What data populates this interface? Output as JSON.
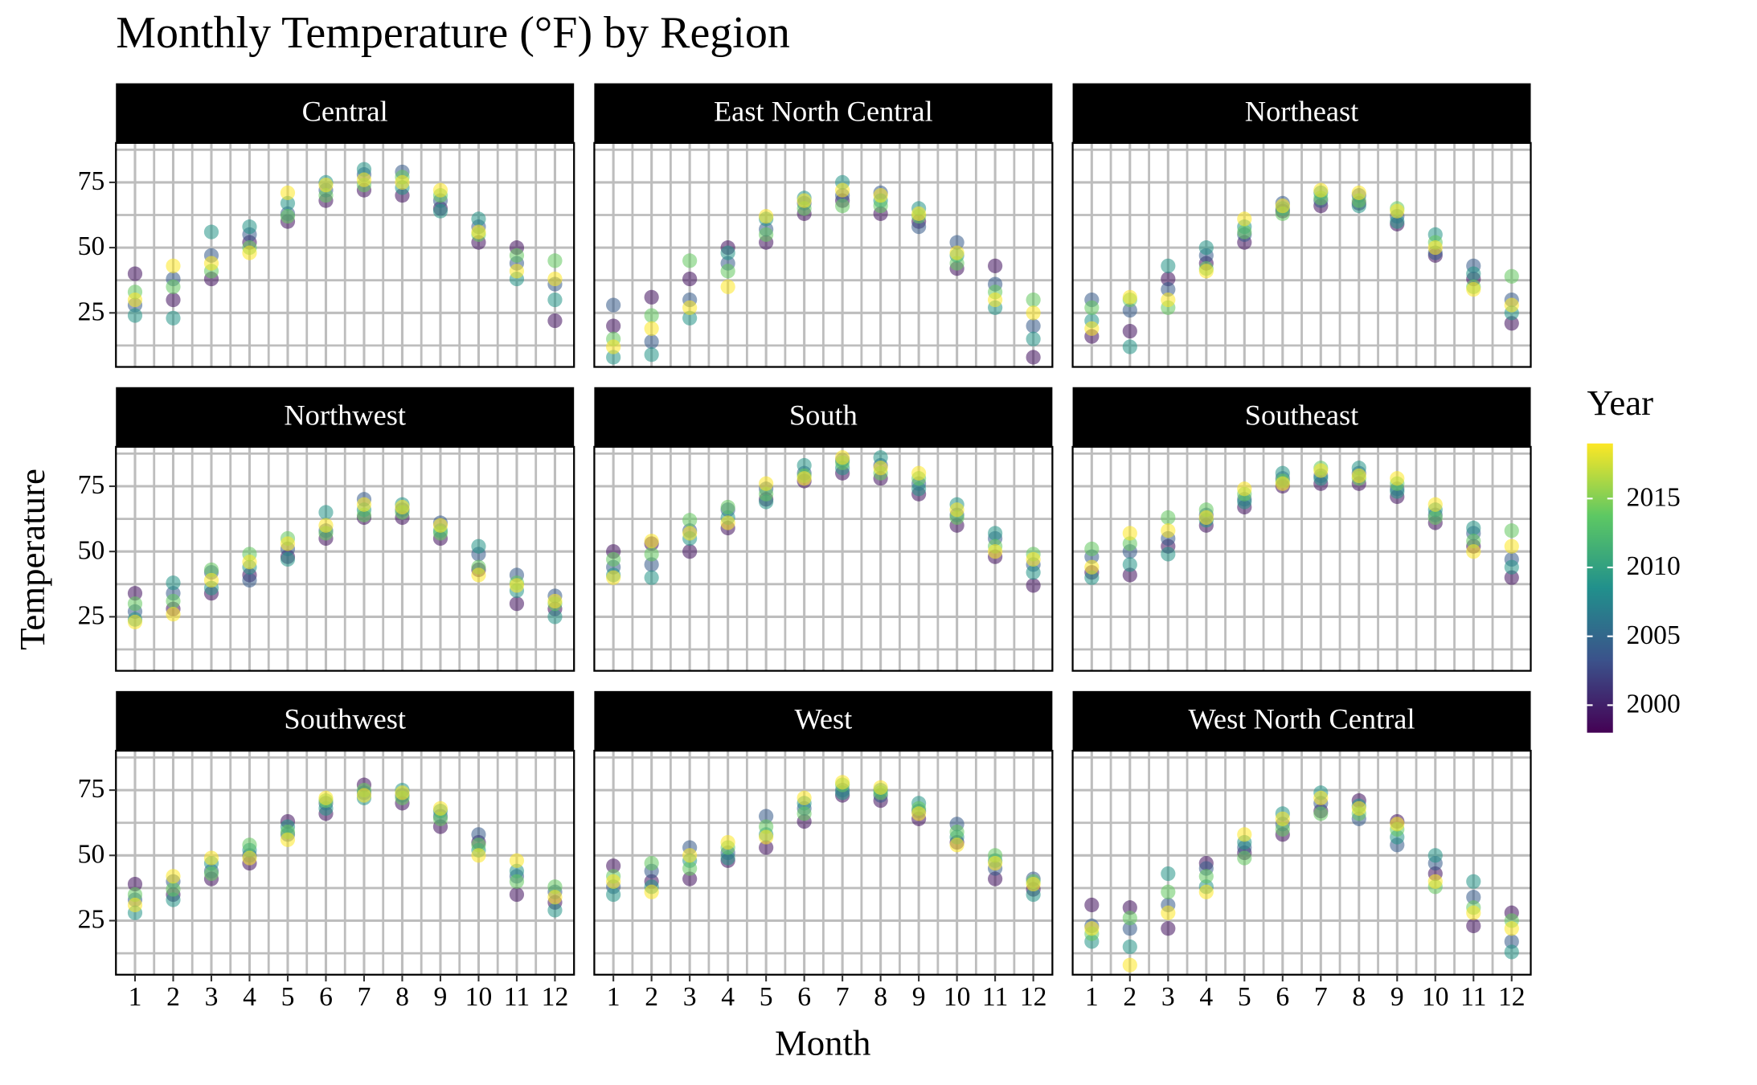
{
  "chart_data": {
    "type": "scatter",
    "title": "Monthly Temperature (°F) by Region",
    "x_label": "Month",
    "y_label": "Temperature",
    "x": [
      1,
      2,
      3,
      4,
      5,
      6,
      7,
      8,
      9,
      10,
      11,
      12
    ],
    "xlim": [
      0.5,
      12.5
    ],
    "xticks": [
      1,
      2,
      3,
      4,
      5,
      6,
      7,
      8,
      9,
      10,
      11,
      12
    ],
    "xminor": [
      1.5,
      2.5,
      3.5,
      4.5,
      5.5,
      6.5,
      7.5,
      8.5,
      9.5,
      10.5,
      11.5
    ],
    "ylim": [
      4.3,
      90.1
    ],
    "yticks": [
      25,
      50,
      75
    ],
    "yminor": [
      12.5,
      37.5,
      62.5,
      87.5
    ],
    "grid": true,
    "legend_title": "Year",
    "years": [
      1999,
      2004,
      2009,
      2014,
      2019
    ],
    "colorbar_lim": [
      1998,
      2019
    ],
    "colorbar_ticks": [
      2000,
      2005,
      2010,
      2015
    ],
    "colormap": [
      "#440154",
      "#3b528b",
      "#21908c",
      "#5dc863",
      "#fde725"
    ],
    "facets": [
      {
        "name": "Central",
        "values": [
          [
            40,
            28,
            24,
            33,
            30
          ],
          [
            30,
            38,
            23,
            35,
            43
          ],
          [
            38,
            47,
            56,
            41,
            44
          ],
          [
            52,
            55,
            58,
            50,
            48
          ],
          [
            60,
            63,
            67,
            62,
            71
          ],
          [
            68,
            72,
            75,
            70,
            74
          ],
          [
            72,
            78,
            80,
            74,
            76
          ],
          [
            70,
            79,
            73,
            77,
            75
          ],
          [
            65,
            68,
            64,
            70,
            72
          ],
          [
            52,
            58,
            61,
            55,
            56
          ],
          [
            50,
            44,
            38,
            47,
            41
          ],
          [
            22,
            36,
            30,
            45,
            38
          ]
        ]
      },
      {
        "name": "East North Central",
        "values": [
          [
            20,
            28,
            8,
            15,
            12
          ],
          [
            31,
            14,
            9,
            24,
            19
          ],
          [
            38,
            30,
            23,
            45,
            27
          ],
          [
            50,
            44,
            48,
            41,
            35
          ],
          [
            52,
            57,
            61,
            55,
            62
          ],
          [
            63,
            67,
            69,
            65,
            68
          ],
          [
            68,
            70,
            75,
            66,
            72
          ],
          [
            63,
            71,
            68,
            66,
            70
          ],
          [
            60,
            58,
            65,
            62,
            63
          ],
          [
            42,
            52,
            47,
            44,
            48
          ],
          [
            43,
            36,
            27,
            33,
            30
          ],
          [
            8,
            20,
            15,
            30,
            25
          ]
        ]
      },
      {
        "name": "Northeast",
        "values": [
          [
            16,
            30,
            22,
            27,
            19
          ],
          [
            18,
            26,
            12,
            30,
            31
          ],
          [
            38,
            34,
            43,
            27,
            30
          ],
          [
            44,
            47,
            50,
            42,
            41
          ],
          [
            52,
            55,
            58,
            56,
            61
          ],
          [
            64,
            67,
            65,
            63,
            66
          ],
          [
            66,
            68,
            71,
            69,
            72
          ],
          [
            67,
            70,
            66,
            68,
            71
          ],
          [
            59,
            62,
            60,
            65,
            64
          ],
          [
            47,
            48,
            55,
            52,
            50
          ],
          [
            38,
            43,
            40,
            35,
            34
          ],
          [
            21,
            30,
            25,
            39,
            28
          ]
        ]
      },
      {
        "name": "Northwest",
        "values": [
          [
            34,
            27,
            24,
            30,
            23
          ],
          [
            28,
            34,
            38,
            31,
            26
          ],
          [
            34,
            42,
            36,
            43,
            39
          ],
          [
            41,
            39,
            44,
            49,
            46
          ],
          [
            48,
            51,
            47,
            55,
            53
          ],
          [
            55,
            58,
            65,
            57,
            60
          ],
          [
            63,
            70,
            66,
            64,
            68
          ],
          [
            63,
            66,
            68,
            65,
            67
          ],
          [
            55,
            61,
            58,
            57,
            60
          ],
          [
            43,
            49,
            52,
            44,
            41
          ],
          [
            30,
            41,
            35,
            38,
            37
          ],
          [
            28,
            33,
            25,
            30,
            31
          ]
        ]
      },
      {
        "name": "South",
        "values": [
          [
            50,
            44,
            41,
            47,
            40
          ],
          [
            53,
            45,
            40,
            49,
            54
          ],
          [
            50,
            58,
            55,
            62,
            57
          ],
          [
            59,
            66,
            63,
            67,
            61
          ],
          [
            70,
            74,
            69,
            72,
            76
          ],
          [
            77,
            80,
            83,
            79,
            78
          ],
          [
            80,
            85,
            82,
            84,
            86
          ],
          [
            78,
            83,
            86,
            80,
            82
          ],
          [
            72,
            76,
            74,
            78,
            80
          ],
          [
            60,
            64,
            68,
            63,
            66
          ],
          [
            48,
            55,
            57,
            52,
            50
          ],
          [
            37,
            45,
            42,
            49,
            47
          ]
        ]
      },
      {
        "name": "Southeast",
        "values": [
          [
            42,
            48,
            40,
            51,
            44
          ],
          [
            41,
            50,
            45,
            53,
            57
          ],
          [
            52,
            55,
            49,
            63,
            58
          ],
          [
            60,
            64,
            62,
            66,
            63
          ],
          [
            67,
            70,
            69,
            72,
            74
          ],
          [
            75,
            78,
            80,
            77,
            76
          ],
          [
            76,
            79,
            78,
            82,
            81
          ],
          [
            76,
            80,
            82,
            78,
            79
          ],
          [
            71,
            74,
            73,
            76,
            78
          ],
          [
            61,
            64,
            66,
            63,
            68
          ],
          [
            52,
            57,
            59,
            54,
            50
          ],
          [
            40,
            47,
            44,
            58,
            52
          ]
        ]
      },
      {
        "name": "Southwest",
        "values": [
          [
            39,
            33,
            28,
            35,
            31
          ],
          [
            35,
            40,
            33,
            37,
            42
          ],
          [
            41,
            44,
            47,
            43,
            49
          ],
          [
            47,
            50,
            52,
            54,
            49
          ],
          [
            63,
            58,
            61,
            59,
            56
          ],
          [
            66,
            70,
            68,
            71,
            72
          ],
          [
            77,
            74,
            72,
            75,
            73
          ],
          [
            70,
            73,
            75,
            72,
            74
          ],
          [
            61,
            65,
            67,
            64,
            68
          ],
          [
            55,
            58,
            52,
            54,
            50
          ],
          [
            35,
            42,
            44,
            40,
            48
          ],
          [
            32,
            36,
            29,
            38,
            34
          ]
        ]
      },
      {
        "name": "West",
        "values": [
          [
            46,
            38,
            35,
            42,
            40
          ],
          [
            40,
            44,
            38,
            47,
            36
          ],
          [
            41,
            53,
            48,
            45,
            50
          ],
          [
            48,
            51,
            49,
            53,
            55
          ],
          [
            53,
            65,
            58,
            61,
            57
          ],
          [
            63,
            68,
            70,
            66,
            72
          ],
          [
            73,
            75,
            74,
            77,
            78
          ],
          [
            71,
            73,
            75,
            74,
            76
          ],
          [
            64,
            67,
            70,
            68,
            66
          ],
          [
            55,
            62,
            57,
            59,
            54
          ],
          [
            41,
            45,
            48,
            50,
            47
          ],
          [
            37,
            41,
            35,
            40,
            39
          ]
        ]
      },
      {
        "name": "West North Central",
        "values": [
          [
            31,
            23,
            17,
            20,
            22
          ],
          [
            30,
            22,
            15,
            26,
            8
          ],
          [
            22,
            31,
            43,
            36,
            28
          ],
          [
            47,
            45,
            38,
            42,
            36
          ],
          [
            51,
            53,
            55,
            49,
            58
          ],
          [
            58,
            62,
            66,
            60,
            64
          ],
          [
            67,
            70,
            74,
            66,
            72
          ],
          [
            71,
            64,
            69,
            66,
            68
          ],
          [
            63,
            54,
            57,
            60,
            62
          ],
          [
            43,
            47,
            50,
            38,
            40
          ],
          [
            23,
            34,
            40,
            30,
            28
          ],
          [
            28,
            17,
            13,
            25,
            22
          ]
        ]
      }
    ]
  }
}
